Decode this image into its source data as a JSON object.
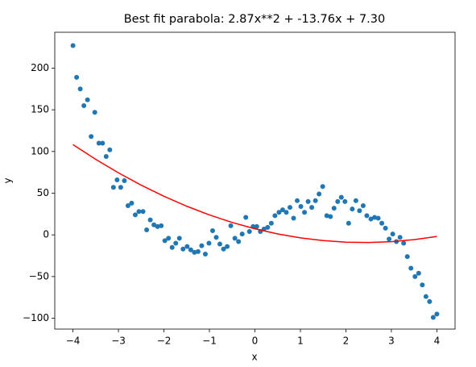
{
  "chart_data": {
    "type": "scatter",
    "title": "Best fit parabola: 2.87x**2 + -13.76x + 7.30",
    "x_label": "x",
    "y_label": "y",
    "xlim": [
      -4.4,
      4.4
    ],
    "ylim": [
      -113,
      243
    ],
    "xticks": [
      {
        "value": -4,
        "label": "−4"
      },
      {
        "value": -3,
        "label": "−3"
      },
      {
        "value": -2,
        "label": "−2"
      },
      {
        "value": -1,
        "label": "−1"
      },
      0,
      1,
      2,
      3,
      4
    ],
    "yticks": [
      {
        "value": -100,
        "label": "−100"
      },
      {
        "value": -50,
        "label": "−50"
      },
      0,
      50,
      100,
      150,
      200
    ],
    "grid": false,
    "series": [
      {
        "type": "scatter",
        "color": "#1f77b4",
        "x": [
          -4.0,
          -3.92,
          -3.84,
          -3.76,
          -3.68,
          -3.6,
          -3.52,
          -3.43,
          -3.35,
          -3.27,
          -3.19,
          -3.11,
          -3.03,
          -2.95,
          -2.87,
          -2.79,
          -2.71,
          -2.63,
          -2.55,
          -2.46,
          -2.38,
          -2.3,
          -2.22,
          -2.14,
          -2.06,
          -1.98,
          -1.9,
          -1.82,
          -1.74,
          -1.66,
          -1.58,
          -1.49,
          -1.41,
          -1.33,
          -1.25,
          -1.17,
          -1.09,
          -1.01,
          -0.93,
          -0.85,
          -0.77,
          -0.69,
          -0.61,
          -0.53,
          -0.44,
          -0.36,
          -0.28,
          -0.2,
          -0.12,
          -0.04,
          0.04,
          0.12,
          0.2,
          0.28,
          0.36,
          0.44,
          0.53,
          0.61,
          0.69,
          0.77,
          0.85,
          0.93,
          1.01,
          1.09,
          1.17,
          1.25,
          1.33,
          1.41,
          1.49,
          1.58,
          1.66,
          1.74,
          1.82,
          1.9,
          1.98,
          2.06,
          2.14,
          2.22,
          2.3,
          2.38,
          2.46,
          2.55,
          2.63,
          2.71,
          2.79,
          2.87,
          2.95,
          3.03,
          3.11,
          3.19,
          3.27,
          3.35,
          3.43,
          3.52,
          3.6,
          3.68,
          3.76,
          3.84,
          3.92,
          4.0
        ],
        "values": [
          227,
          189,
          175,
          155,
          162,
          118,
          147,
          110,
          110,
          94,
          102,
          57,
          66,
          57,
          65,
          35,
          38,
          24,
          28,
          28,
          6,
          18,
          12,
          10,
          11,
          -7,
          -4,
          -15,
          -10,
          -4,
          -17,
          -14,
          -18,
          -21,
          -20,
          -13,
          -23,
          -10,
          5,
          -3,
          -11,
          -17,
          -14,
          11,
          -4,
          -8,
          1,
          21,
          4,
          10,
          10,
          4,
          7,
          9,
          14,
          23,
          27,
          30,
          27,
          33,
          20,
          41,
          34,
          27,
          40,
          33,
          41,
          49,
          58,
          23,
          22,
          32,
          40,
          45,
          40,
          14,
          31,
          41,
          29,
          35,
          23,
          19,
          21,
          20,
          14,
          8,
          -5,
          1,
          -8,
          -3,
          -10,
          -26,
          -40,
          -50,
          -46,
          -60,
          -74,
          -80,
          -99,
          -95
        ]
      },
      {
        "type": "line",
        "color": "#ff0000",
        "x": [
          -4,
          -3.5,
          -3,
          -2.5,
          -2,
          -1.5,
          -1,
          -0.5,
          0,
          0.5,
          1,
          1.5,
          2,
          2.5,
          3,
          3.5,
          4
        ],
        "values": [
          108.26,
          90.62,
          74.41,
          59.64,
          46.3,
          34.4,
          23.93,
          14.9,
          7.3,
          1.14,
          -3.59,
          -6.88,
          -8.74,
          -9.16,
          -8.15,
          -5.7,
          -1.82
        ]
      }
    ]
  }
}
